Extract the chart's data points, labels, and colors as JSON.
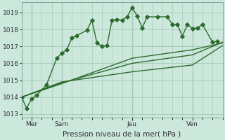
{
  "background_color": "#cce8dc",
  "grid_color": "#aaccbb",
  "line_color": "#2d6b2d",
  "title": "Pression niveau de la mer( hPa )",
  "ylim": [
    1012.8,
    1019.6
  ],
  "yticks": [
    1013,
    1014,
    1015,
    1016,
    1017,
    1018,
    1019
  ],
  "xlim": [
    0,
    80
  ],
  "xtick_positions": [
    4,
    16,
    44,
    68
  ],
  "xtick_labels": [
    "Mer",
    "Sam",
    "Jeu",
    "Ven"
  ],
  "vline_positions": [
    4,
    16,
    44,
    68
  ],
  "line1_x": [
    0,
    2,
    4,
    6,
    10,
    14,
    16,
    18,
    20,
    22,
    26,
    28,
    30,
    32,
    34,
    36,
    38,
    40,
    42,
    44,
    46,
    48,
    50,
    54,
    58,
    60,
    62,
    64,
    66,
    68,
    70,
    72,
    76,
    78
  ],
  "line1_y": [
    1014.0,
    1013.35,
    1013.9,
    1014.1,
    1014.75,
    1016.3,
    1016.6,
    1016.8,
    1017.5,
    1017.65,
    1017.95,
    1018.55,
    1017.2,
    1017.0,
    1017.05,
    1018.55,
    1018.6,
    1018.55,
    1018.75,
    1019.3,
    1018.8,
    1018.1,
    1018.75,
    1018.75,
    1018.75,
    1018.3,
    1018.3,
    1017.6,
    1018.3,
    1018.05,
    1018.1,
    1018.3,
    1017.25,
    1017.3
  ],
  "line2_x": [
    0,
    16,
    44,
    68,
    80
  ],
  "line2_y": [
    1014.0,
    1014.8,
    1016.3,
    1016.8,
    1017.2
  ],
  "line3_x": [
    0,
    16,
    44,
    68,
    80
  ],
  "line3_y": [
    1014.0,
    1014.85,
    1016.0,
    1016.5,
    1017.25
  ],
  "line4_x": [
    0,
    16,
    44,
    68,
    80
  ],
  "line4_y": [
    1014.0,
    1014.9,
    1015.5,
    1015.9,
    1017.05
  ],
  "title_fontsize": 7.5,
  "tick_fontsize": 6.5
}
